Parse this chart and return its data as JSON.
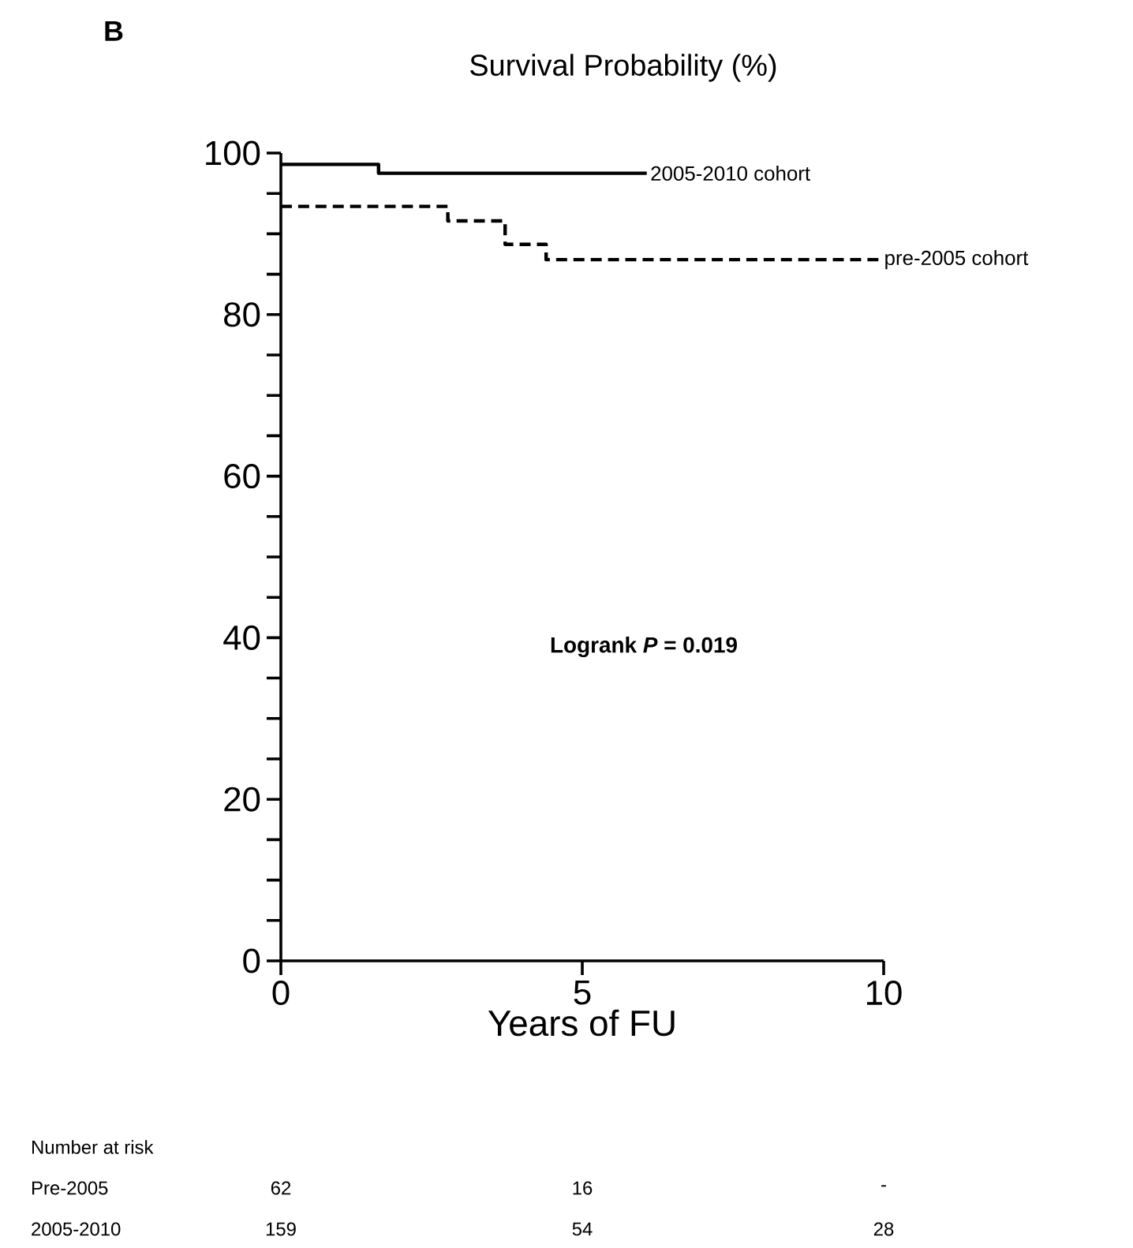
{
  "chart_data": {
    "type": "step",
    "title": "Survival Probability (%)",
    "xlabel": "Years of FU",
    "xlim": [
      0,
      10
    ],
    "ylim": [
      0,
      100
    ],
    "xticks": [
      0,
      5,
      10
    ],
    "yticks": [
      0,
      {
        "value": 5,
        "label": null
      },
      {
        "value": 10,
        "label": null
      },
      {
        "value": 15,
        "label": null
      },
      20,
      {
        "value": 25,
        "label": null
      },
      {
        "value": 30,
        "label": null
      },
      {
        "value": 35,
        "label": null
      },
      40,
      {
        "value": 45,
        "label": null
      },
      {
        "value": 50,
        "label": null
      },
      {
        "value": 55,
        "label": null
      },
      60,
      {
        "value": 65,
        "label": null
      },
      {
        "value": 70,
        "label": null
      },
      {
        "value": 75,
        "label": null
      },
      80,
      {
        "value": 85,
        "label": null
      },
      {
        "value": 90,
        "label": null
      },
      {
        "value": 95,
        "label": null
      },
      100
    ],
    "series": [
      {
        "name": "2005-2010 cohort",
        "color": "#000000",
        "line_style": "solid",
        "x": [
          0,
          1.62,
          6.07
        ],
        "values": [
          98.6,
          97.5,
          97.5
        ]
      },
      {
        "name": "pre-2005 cohort",
        "color": "#000000",
        "line_style": "dashed",
        "x": [
          0,
          2.77,
          3.72,
          4.4,
          9.95
        ],
        "values": [
          93.4,
          91.6,
          88.7,
          86.8,
          86.8
        ]
      }
    ],
    "annotations": [
      "B",
      "Logrank *P* = 0.019",
      "Number at risk",
      "Pre-2005",
      "62",
      "16",
      "-",
      "2005-2010",
      "159",
      "54",
      "28"
    ]
  }
}
